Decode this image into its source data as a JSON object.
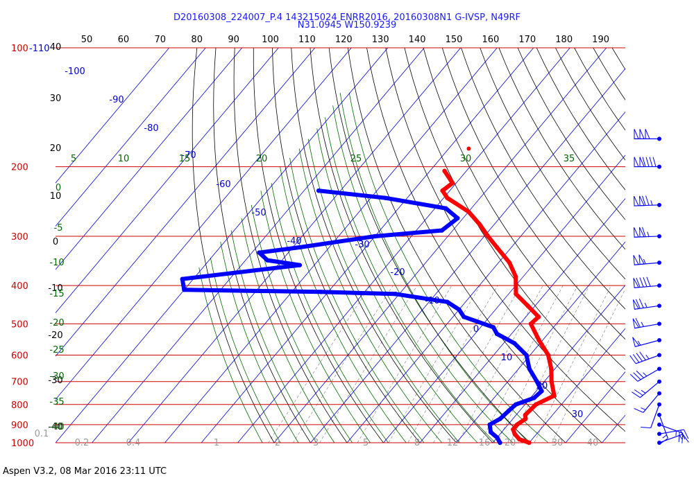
{
  "title_line1": "D20160308_224007_P.4 143215024 ENRR2016, 20160308N1 G-IVSP, N49RF",
  "title_line2": "N31.0945 W150.9239",
  "footer": "Aspen V3.2, 08 Mar 2016  23:11 UTC",
  "colors": {
    "temperature": "#ff0000",
    "dewpoint": "#0000ff",
    "isobar": "#cc0000",
    "isotherm": "#0000cc",
    "dry_adiabat": "#000000",
    "moist_adiabat": "#006600",
    "mixing_ratio": "#999999",
    "wind_barb": "#0000ff"
  },
  "chart_data": {
    "type": "skew-t",
    "pressure_levels": [
      100,
      200,
      300,
      400,
      500,
      600,
      700,
      800,
      900,
      1000
    ],
    "pressure_tick_labels": [
      "100",
      "200",
      "300",
      "400",
      "500",
      "600",
      "700",
      "800",
      "900",
      "1000"
    ],
    "top_left_label": "-110",
    "top_axis_labels": [
      "50",
      "60",
      "70",
      "80",
      "90",
      "100",
      "110",
      "120",
      "130",
      "140",
      "150",
      "160",
      "170",
      "180",
      "190"
    ],
    "isotherm_labels": [
      "-100",
      "-90",
      "-80",
      "-70",
      "-60",
      "-50",
      "-40",
      "-30",
      "-20",
      "-10",
      "0",
      "10",
      "20",
      "30"
    ],
    "height_labels": [
      "40",
      "30",
      "20",
      "10",
      "0",
      "-10",
      "-20",
      "-30",
      "-40"
    ],
    "moist_left_labels": [
      "0",
      "-5",
      "-10",
      "-15",
      "-20",
      "-25",
      "-30",
      "-35",
      "-40"
    ],
    "theta_w_top_labels": [
      "5",
      "10",
      "15",
      "20",
      "25",
      "30",
      "35"
    ],
    "mixing_ratio_labels": [
      "0.1",
      "0.2",
      "0.4",
      "1",
      "2",
      "3",
      "5",
      "8",
      "12",
      "16",
      "20",
      "30",
      "40"
    ],
    "temperature_profile": [
      {
        "p": 1000,
        "t": 30
      },
      {
        "p": 980,
        "t": 26.5
      },
      {
        "p": 950,
        "t": 24
      },
      {
        "p": 925,
        "t": 22.5
      },
      {
        "p": 900,
        "t": 22.5
      },
      {
        "p": 870,
        "t": 23.5
      },
      {
        "p": 850,
        "t": 22.5
      },
      {
        "p": 800,
        "t": 23
      },
      {
        "p": 760,
        "t": 26
      },
      {
        "p": 700,
        "t": 22
      },
      {
        "p": 650,
        "t": 19
      },
      {
        "p": 600,
        "t": 15
      },
      {
        "p": 550,
        "t": 9
      },
      {
        "p": 500,
        "t": 3
      },
      {
        "p": 480,
        "t": 3.5
      },
      {
        "p": 450,
        "t": -2
      },
      {
        "p": 420,
        "t": -8
      },
      {
        "p": 380,
        "t": -12
      },
      {
        "p": 350,
        "t": -17
      },
      {
        "p": 320,
        "t": -24
      },
      {
        "p": 300,
        "t": -29
      },
      {
        "p": 280,
        "t": -34
      },
      {
        "p": 260,
        "t": -40
      },
      {
        "p": 240,
        "t": -49
      },
      {
        "p": 230,
        "t": -52
      },
      {
        "p": 220,
        "t": -51
      },
      {
        "p": 205,
        "t": -56
      }
    ],
    "dewpoint_profile": [
      {
        "p": 1000,
        "t": 22
      },
      {
        "p": 970,
        "t": 20
      },
      {
        "p": 940,
        "t": 17
      },
      {
        "p": 900,
        "t": 15
      },
      {
        "p": 870,
        "t": 16.5
      },
      {
        "p": 830,
        "t": 17
      },
      {
        "p": 800,
        "t": 17.5
      },
      {
        "p": 770,
        "t": 21
      },
      {
        "p": 740,
        "t": 21.5
      },
      {
        "p": 700,
        "t": 18
      },
      {
        "p": 650,
        "t": 13
      },
      {
        "p": 600,
        "t": 9
      },
      {
        "p": 560,
        "t": 3
      },
      {
        "p": 530,
        "t": -4
      },
      {
        "p": 510,
        "t": -6.5
      },
      {
        "p": 480,
        "t": -17
      },
      {
        "p": 460,
        "t": -20
      },
      {
        "p": 440,
        "t": -25
      },
      {
        "p": 420,
        "t": -41
      },
      {
        "p": 415,
        "t": -62
      },
      {
        "p": 410,
        "t": -100
      },
      {
        "p": 385,
        "t": -103
      },
      {
        "p": 355,
        "t": -74
      },
      {
        "p": 345,
        "t": -84
      },
      {
        "p": 330,
        "t": -88
      },
      {
        "p": 320,
        "t": -78
      },
      {
        "p": 300,
        "t": -60
      },
      {
        "p": 290,
        "t": -43
      },
      {
        "p": 270,
        "t": -41.5
      },
      {
        "p": 255,
        "t": -47
      },
      {
        "p": 240,
        "t": -66
      },
      {
        "p": 230,
        "t": -86
      }
    ],
    "isolated_temperature_point": {
      "p": 180,
      "t": -54.5
    },
    "wind_barbs": [
      {
        "p": 1000,
        "speed_kt": 15,
        "dir_deg": 70
      },
      {
        "p": 950,
        "speed_kt": 20,
        "dir_deg": 80
      },
      {
        "p": 900,
        "speed_kt": 25,
        "dir_deg": 110
      },
      {
        "p": 850,
        "speed_kt": 15,
        "dir_deg": 160
      },
      {
        "p": 800,
        "speed_kt": 10,
        "dir_deg": 200
      },
      {
        "p": 750,
        "speed_kt": 15,
        "dir_deg": 220
      },
      {
        "p": 700,
        "speed_kt": 25,
        "dir_deg": 230
      },
      {
        "p": 650,
        "speed_kt": 35,
        "dir_deg": 240
      },
      {
        "p": 600,
        "speed_kt": 45,
        "dir_deg": 250
      },
      {
        "p": 550,
        "speed_kt": 55,
        "dir_deg": 255
      },
      {
        "p": 500,
        "speed_kt": 65,
        "dir_deg": 260
      },
      {
        "p": 450,
        "speed_kt": 75,
        "dir_deg": 262
      },
      {
        "p": 400,
        "speed_kt": 90,
        "dir_deg": 265
      },
      {
        "p": 350,
        "speed_kt": 105,
        "dir_deg": 265
      },
      {
        "p": 300,
        "speed_kt": 115,
        "dir_deg": 268
      },
      {
        "p": 250,
        "speed_kt": 125,
        "dir_deg": 268
      },
      {
        "p": 200,
        "speed_kt": 140,
        "dir_deg": 270
      },
      {
        "p": 170,
        "speed_kt": 150,
        "dir_deg": 270
      }
    ]
  }
}
